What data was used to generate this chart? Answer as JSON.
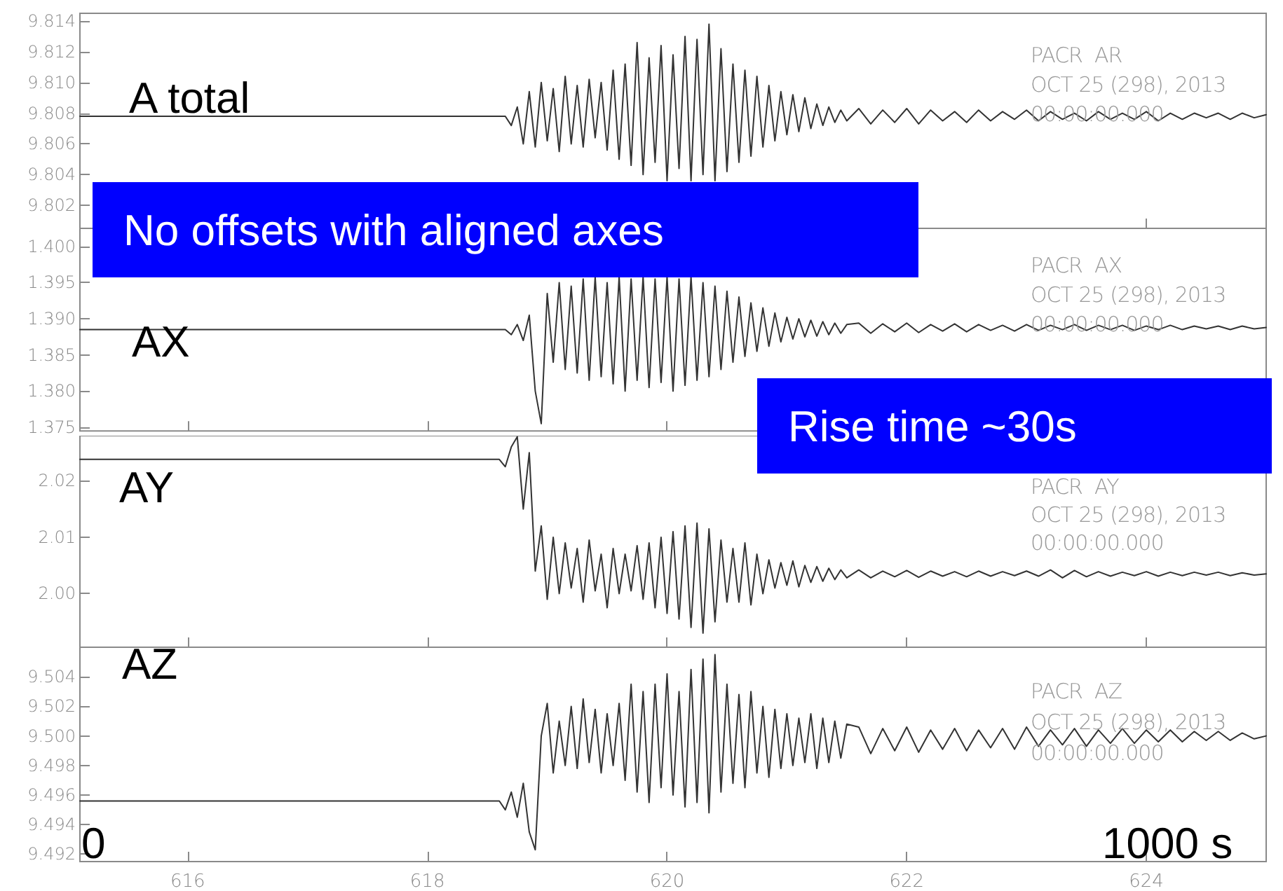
{
  "chart_data": [
    {
      "type": "line",
      "marker": "none",
      "tick_labels": "y",
      "xlim": [
        615.1,
        625
      ],
      "xticks": [
        616,
        618,
        620,
        622,
        624
      ],
      "ylim": [
        9.8005,
        9.8145
      ],
      "yticks": [
        9.802,
        9.804,
        9.806,
        9.808,
        {
          "value": 9.81,
          "label": "9.810"
        },
        9.812,
        9.814
      ],
      "annotations": [
        "A total",
        "PACR  AR",
        "OCT 25 (298), 2013",
        "00:00:00.000",
        "No offsets with aligned axes"
      ],
      "x": [
        615.1,
        618.6,
        618.65,
        618.7,
        618.75,
        618.8,
        618.85,
        618.9,
        618.95,
        619,
        619.05,
        619.1,
        619.15,
        619.2,
        619.25,
        619.3,
        619.35,
        619.4,
        619.45,
        619.5,
        619.55,
        619.6,
        619.65,
        619.7,
        619.75,
        619.8,
        619.85,
        619.9,
        619.95,
        620,
        620.05,
        620.1,
        620.15,
        620.2,
        620.25,
        620.3,
        620.35,
        620.4,
        620.45,
        620.5,
        620.55,
        620.6,
        620.65,
        620.7,
        620.75,
        620.8,
        620.85,
        620.9,
        620.95,
        621,
        621.05,
        621.1,
        621.15,
        621.2,
        621.25,
        621.3,
        621.35,
        621.4,
        621.45,
        621.5,
        621.6,
        621.7,
        621.8,
        621.9,
        622,
        622.1,
        622.2,
        622.3,
        622.4,
        622.5,
        622.6,
        622.7,
        622.8,
        622.9,
        623,
        623.1,
        623.2,
        623.3,
        623.4,
        623.5,
        623.6,
        623.7,
        623.8,
        623.9,
        624,
        624.1,
        624.2,
        624.3,
        624.4,
        624.5,
        624.6,
        624.7,
        624.8,
        624.9,
        625
      ],
      "series": [
        {
          "color": "#333333",
          "values": [
            9.8078,
            9.8078,
            9.8078,
            9.8072,
            9.8084,
            9.806,
            9.8094,
            9.8058,
            9.81,
            9.8062,
            9.8096,
            9.8055,
            9.8104,
            9.806,
            9.8098,
            9.8058,
            9.8102,
            9.8064,
            9.81,
            9.8056,
            9.8108,
            9.805,
            9.8112,
            9.8046,
            9.8126,
            9.804,
            9.8116,
            9.8048,
            9.8124,
            9.8036,
            9.8118,
            9.8044,
            9.813,
            9.8036,
            9.8128,
            9.804,
            9.8138,
            9.8036,
            9.8122,
            9.8042,
            9.8112,
            9.8048,
            9.8108,
            9.8052,
            9.8104,
            9.8058,
            9.8098,
            9.8062,
            9.8094,
            9.8066,
            9.8092,
            9.8068,
            9.809,
            9.807,
            9.8086,
            9.8072,
            9.8084,
            9.8074,
            9.8082,
            9.8075,
            9.8083,
            9.8073,
            9.8082,
            9.8074,
            9.8083,
            9.8073,
            9.8082,
            9.8075,
            9.8081,
            9.8074,
            9.8082,
            9.8075,
            9.8081,
            9.8076,
            9.8082,
            9.8075,
            9.8081,
            9.8076,
            9.808,
            9.8075,
            9.8081,
            9.8076,
            9.808,
            9.8076,
            9.8081,
            9.8075,
            9.808,
            9.8076,
            9.808,
            9.8077,
            9.808,
            9.8076,
            9.808,
            9.8077,
            9.8079
          ]
        }
      ]
    },
    {
      "type": "line",
      "marker": "none",
      "tick_labels": "y",
      "xlim": [
        615.1,
        625
      ],
      "xticks": [
        616,
        618,
        620,
        622,
        624
      ],
      "ylim": [
        1.3745,
        1.4025
      ],
      "yticks": [
        1.375,
        {
          "value": 1.38,
          "label": "1.380"
        },
        1.385,
        {
          "value": 1.39,
          "label": "1.390"
        },
        1.395,
        {
          "value": 1.4,
          "label": "1.400"
        }
      ],
      "annotations": [
        "AX",
        "PACR  AX",
        "OCT 25 (298), 2013",
        "00:00:00.000",
        "Rise time ~30s"
      ],
      "x": [
        615.1,
        618.6,
        618.65,
        618.7,
        618.75,
        618.8,
        618.85,
        618.9,
        618.95,
        619,
        619.05,
        619.1,
        619.15,
        619.2,
        619.25,
        619.3,
        619.35,
        619.4,
        619.45,
        619.5,
        619.55,
        619.6,
        619.65,
        619.7,
        619.75,
        619.8,
        619.85,
        619.9,
        619.95,
        620,
        620.05,
        620.1,
        620.15,
        620.2,
        620.25,
        620.3,
        620.35,
        620.4,
        620.45,
        620.5,
        620.55,
        620.6,
        620.65,
        620.7,
        620.75,
        620.8,
        620.85,
        620.9,
        620.95,
        621,
        621.05,
        621.1,
        621.15,
        621.2,
        621.25,
        621.3,
        621.35,
        621.4,
        621.45,
        621.5,
        621.6,
        621.7,
        621.8,
        621.9,
        622,
        622.1,
        622.2,
        622.3,
        622.4,
        622.5,
        622.6,
        622.7,
        622.8,
        622.9,
        623,
        623.1,
        623.2,
        623.3,
        623.4,
        623.5,
        623.6,
        623.7,
        623.8,
        623.9,
        624,
        624.1,
        624.2,
        624.3,
        624.4,
        624.5,
        624.6,
        624.7,
        624.8,
        624.9,
        625
      ],
      "series": [
        {
          "color": "#333333",
          "values": [
            1.3885,
            1.3885,
            1.3885,
            1.3878,
            1.3892,
            1.387,
            1.3905,
            1.38,
            1.3755,
            1.3935,
            1.384,
            1.395,
            1.383,
            1.3945,
            1.3825,
            1.3955,
            1.3815,
            1.3958,
            1.382,
            1.395,
            1.381,
            1.3958,
            1.38,
            1.3955,
            1.3815,
            1.3958,
            1.3805,
            1.3955,
            1.3812,
            1.3958,
            1.38,
            1.3955,
            1.3808,
            1.3958,
            1.3815,
            1.395,
            1.382,
            1.3945,
            1.383,
            1.3938,
            1.384,
            1.393,
            1.3848,
            1.3922,
            1.3855,
            1.3915,
            1.3862,
            1.3908,
            1.3868,
            1.3902,
            1.3872,
            1.39,
            1.3875,
            1.3898,
            1.3876,
            1.3896,
            1.3878,
            1.3894,
            1.388,
            1.3892,
            1.3894,
            1.388,
            1.3893,
            1.3882,
            1.3894,
            1.3881,
            1.3892,
            1.3883,
            1.3893,
            1.3882,
            1.3892,
            1.3884,
            1.3891,
            1.3883,
            1.3892,
            1.3884,
            1.3891,
            1.3885,
            1.3892,
            1.3884,
            1.3891,
            1.3885,
            1.3891,
            1.3884,
            1.389,
            1.3885,
            1.3891,
            1.3885,
            1.389,
            1.3886,
            1.389,
            1.3885,
            1.389,
            1.3886,
            1.3888
          ]
        }
      ]
    },
    {
      "type": "line",
      "marker": "none",
      "tick_labels": "y",
      "xlim": [
        615.1,
        625
      ],
      "xticks": [
        616,
        618,
        620,
        622,
        624
      ],
      "ylim": [
        1.9905,
        2.028
      ],
      "yticks": [
        {
          "value": 2,
          "label": "2.00"
        },
        2.01,
        2.02
      ],
      "annotations": [
        "AY",
        "PACR  AY",
        "OCT 25 (298), 2013",
        "00:00:00.000"
      ],
      "x": [
        615.1,
        618.6,
        618.65,
        618.7,
        618.75,
        618.8,
        618.85,
        618.9,
        618.95,
        619,
        619.05,
        619.1,
        619.15,
        619.2,
        619.25,
        619.3,
        619.35,
        619.4,
        619.45,
        619.5,
        619.55,
        619.6,
        619.65,
        619.7,
        619.75,
        619.8,
        619.85,
        619.9,
        619.95,
        620,
        620.05,
        620.1,
        620.15,
        620.2,
        620.25,
        620.3,
        620.35,
        620.4,
        620.45,
        620.5,
        620.55,
        620.6,
        620.65,
        620.7,
        620.75,
        620.8,
        620.85,
        620.9,
        620.95,
        621,
        621.05,
        621.1,
        621.15,
        621.2,
        621.25,
        621.3,
        621.35,
        621.4,
        621.45,
        621.5,
        621.6,
        621.7,
        621.8,
        621.9,
        622,
        622.1,
        622.2,
        622.3,
        622.4,
        622.5,
        622.6,
        622.7,
        622.8,
        622.9,
        623,
        623.1,
        623.2,
        623.3,
        623.4,
        623.5,
        623.6,
        623.7,
        623.8,
        623.9,
        624,
        624.1,
        624.2,
        624.3,
        624.4,
        624.5,
        624.6,
        624.7,
        624.8,
        624.9,
        625
      ],
      "series": [
        {
          "color": "#333333",
          "values": [
            2.0238,
            2.0238,
            2.0225,
            2.026,
            2.0278,
            2.015,
            2.025,
            2.004,
            2.012,
            1.999,
            2.01,
            2.0,
            2.009,
            2.001,
            2.008,
            1.9985,
            2.0095,
            2.0005,
            2.007,
            1.9975,
            2.008,
            2.0,
            2.007,
            2.0005,
            2.0085,
            1.999,
            2.009,
            1.9975,
            2.01,
            1.9965,
            2.011,
            1.9955,
            2.012,
            1.994,
            2.0125,
            1.993,
            2.0115,
            1.995,
            2.0095,
            1.9985,
            2.008,
            1.9985,
            2.009,
            1.998,
            2.007,
            2.0,
            2.006,
            2.001,
            2.0055,
            2.0015,
            2.0058,
            2.0012,
            2.005,
            2.002,
            2.0048,
            2.0022,
            2.0045,
            2.0025,
            2.0042,
            2.0028,
            2.0042,
            2.0028,
            2.004,
            2.003,
            2.0041,
            2.0029,
            2.004,
            2.0031,
            2.0039,
            2.003,
            2.004,
            2.0031,
            2.0039,
            2.0032,
            2.004,
            2.0031,
            2.0042,
            2.0028,
            2.0041,
            2.003,
            2.0039,
            2.0031,
            2.0038,
            2.0032,
            2.0039,
            2.0031,
            2.0038,
            2.0032,
            2.0038,
            2.0033,
            2.0038,
            2.0032,
            2.0037,
            2.0033,
            2.0035
          ]
        }
      ]
    },
    {
      "type": "line",
      "marker": "none",
      "xlim": [
        615.1,
        625
      ],
      "xticks": [
        616,
        618,
        620,
        622,
        624
      ],
      "ylim": [
        9.4915,
        9.506
      ],
      "yticks": [
        9.492,
        9.494,
        9.496,
        9.498,
        {
          "value": 9.5,
          "label": "9.500"
        },
        9.502,
        9.504
      ],
      "annotations": [
        "AZ",
        "PACR  AZ",
        "OCT 25 (298), 2013",
        "00:00:00.000",
        "0",
        "1000 s"
      ],
      "x": [
        615.1,
        618.6,
        618.65,
        618.7,
        618.75,
        618.8,
        618.85,
        618.9,
        618.95,
        619,
        619.05,
        619.1,
        619.15,
        619.2,
        619.25,
        619.3,
        619.35,
        619.4,
        619.45,
        619.5,
        619.55,
        619.6,
        619.65,
        619.7,
        619.75,
        619.8,
        619.85,
        619.9,
        619.95,
        620,
        620.05,
        620.1,
        620.15,
        620.2,
        620.25,
        620.3,
        620.35,
        620.4,
        620.45,
        620.5,
        620.55,
        620.6,
        620.65,
        620.7,
        620.75,
        620.8,
        620.85,
        620.9,
        620.95,
        621,
        621.05,
        621.1,
        621.15,
        621.2,
        621.25,
        621.3,
        621.35,
        621.4,
        621.45,
        621.5,
        621.6,
        621.7,
        621.8,
        621.9,
        622,
        622.1,
        622.2,
        622.3,
        622.4,
        622.5,
        622.6,
        622.7,
        622.8,
        622.9,
        623,
        623.1,
        623.2,
        623.3,
        623.4,
        623.5,
        623.6,
        623.7,
        623.8,
        623.9,
        624,
        624.1,
        624.2,
        624.3,
        624.4,
        624.5,
        624.6,
        624.7,
        624.8,
        624.9,
        625
      ],
      "series": [
        {
          "color": "#333333",
          "values": [
            9.4956,
            9.4956,
            9.495,
            9.4962,
            9.4945,
            9.4968,
            9.4935,
            9.4923,
            9.5,
            9.5022,
            9.4975,
            9.501,
            9.498,
            9.502,
            9.4978,
            9.5025,
            9.4982,
            9.5018,
            9.4975,
            9.5015,
            9.498,
            9.5022,
            9.497,
            9.5035,
            9.4962,
            9.503,
            9.4955,
            9.5035,
            9.4965,
            9.5042,
            9.496,
            9.503,
            9.4952,
            9.5045,
            9.4955,
            9.5052,
            9.4948,
            9.5055,
            9.4962,
            9.5035,
            9.4968,
            9.5028,
            9.4965,
            9.503,
            9.4975,
            9.502,
            9.4972,
            9.5018,
            9.4978,
            9.5015,
            9.498,
            9.5012,
            9.4982,
            9.5015,
            9.4978,
            9.5012,
            9.4982,
            9.501,
            9.4985,
            9.5008,
            9.5006,
            9.4988,
            9.5005,
            9.499,
            9.5006,
            9.4989,
            9.5004,
            9.4991,
            9.5005,
            9.499,
            9.5004,
            9.4992,
            9.5005,
            9.4991,
            9.5006,
            9.4993,
            9.5004,
            9.4994,
            9.5005,
            9.4993,
            9.5004,
            9.4995,
            9.5005,
            9.4995,
            9.5004,
            9.4996,
            9.5004,
            9.4996,
            9.5003,
            9.4997,
            9.5003,
            9.4997,
            9.5002,
            9.4998,
            9.5
          ]
        }
      ]
    }
  ]
}
